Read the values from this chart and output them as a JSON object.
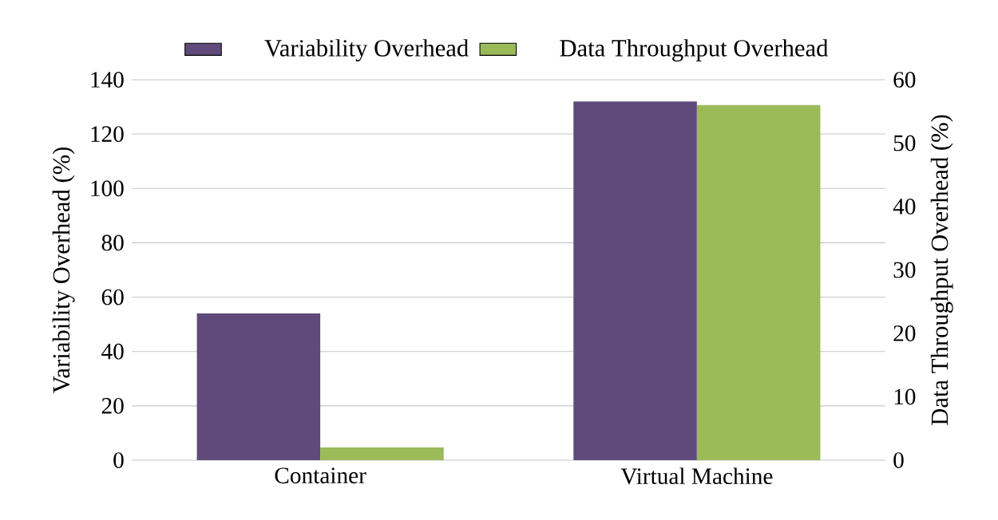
{
  "chart_data": {
    "type": "bar",
    "categories": [
      "Container",
      "Virtual Machine"
    ],
    "ylabel": "Variability Overhead (%)",
    "y2label": "Data Throughput Overhead (%)",
    "series": [
      {
        "name": "Variability Overhead",
        "color": "#604a7b",
        "values": [
          54,
          132
        ]
      },
      {
        "name": "Data Throughput Overhead",
        "color": "#9bbb59",
        "values": [
          2,
          56
        ],
        "axis": "y2"
      }
    ],
    "ylim": [
      0,
      140
    ],
    "yticks": [
      0,
      20,
      40,
      60,
      80,
      100,
      120,
      140
    ],
    "y2lim": [
      0,
      60
    ],
    "y2ticks": [
      0,
      10,
      20,
      30,
      40,
      50,
      60
    ],
    "grid": "y",
    "legend": "top"
  }
}
